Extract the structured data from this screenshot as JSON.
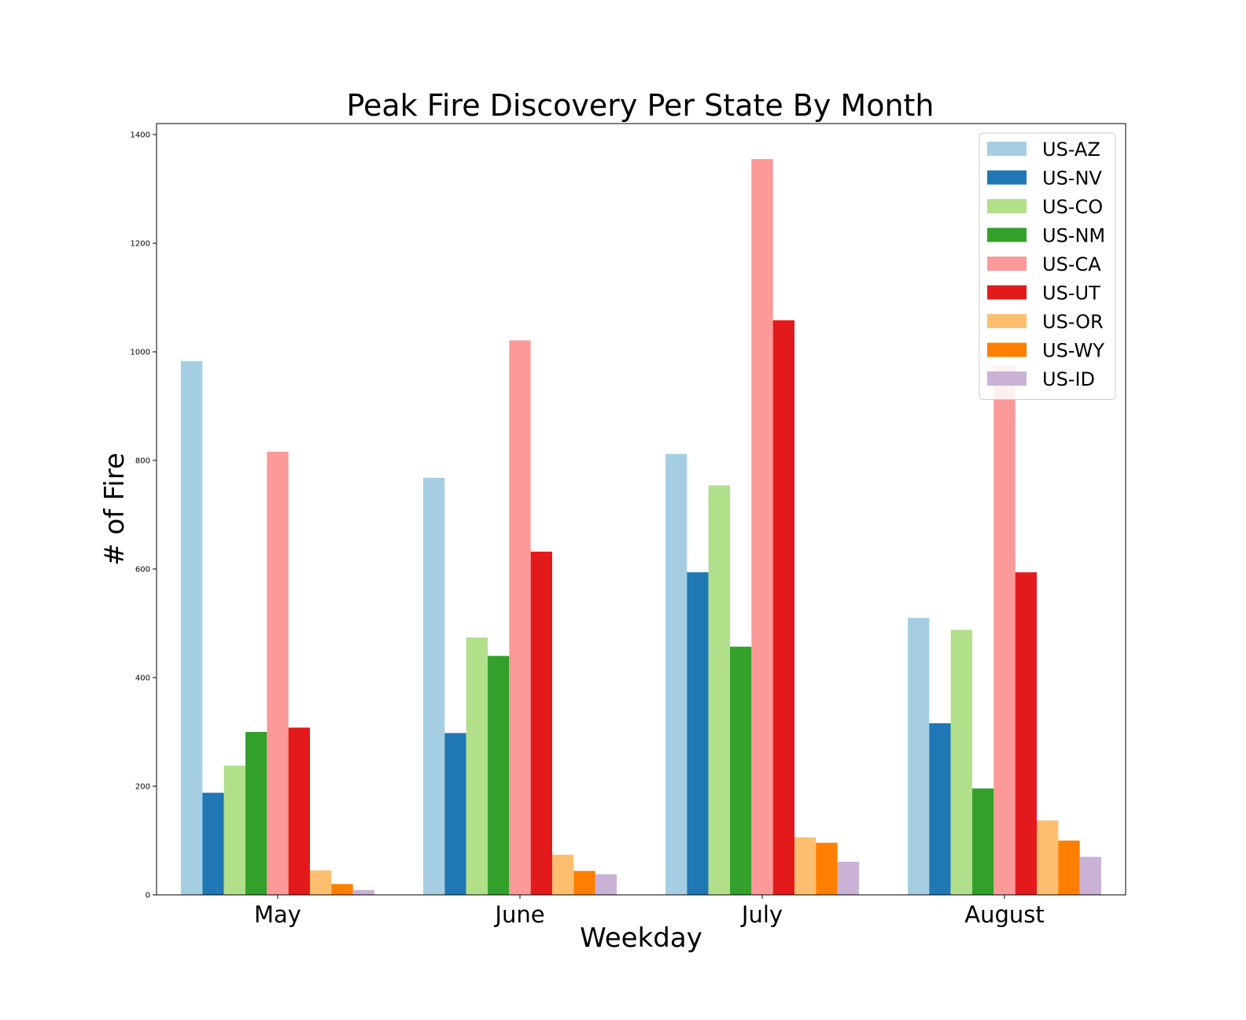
{
  "chart_data": {
    "type": "bar",
    "title": "Peak Fire Discovery Per State By Month",
    "xlabel": "Weekday",
    "ylabel": "# of Fire",
    "categories": [
      "May",
      "June",
      "July",
      "August"
    ],
    "ylim": [
      0,
      1420
    ],
    "yticks": [
      0,
      200,
      400,
      600,
      800,
      1000,
      1200,
      1400
    ],
    "legend_position": "top-right",
    "grid": false,
    "series": [
      {
        "name": "US-AZ",
        "color": "#a6cee3",
        "values": [
          983,
          768,
          812,
          510
        ]
      },
      {
        "name": "US-NV",
        "color": "#1f78b4",
        "values": [
          188,
          298,
          594,
          316
        ]
      },
      {
        "name": "US-CO",
        "color": "#b2df8a",
        "values": [
          238,
          474,
          754,
          488
        ]
      },
      {
        "name": "US-NM",
        "color": "#33a02c",
        "values": [
          300,
          440,
          457,
          196
        ]
      },
      {
        "name": "US-CA",
        "color": "#fb9a99",
        "values": [
          816,
          1021,
          1355,
          975
        ]
      },
      {
        "name": "US-UT",
        "color": "#e31a1c",
        "values": [
          308,
          632,
          1058,
          594
        ]
      },
      {
        "name": "US-OR",
        "color": "#fdbf6f",
        "values": [
          45,
          74,
          106,
          137
        ]
      },
      {
        "name": "US-WY",
        "color": "#ff7f00",
        "values": [
          20,
          44,
          96,
          100
        ]
      },
      {
        "name": "US-ID",
        "color": "#cab2d6",
        "values": [
          9,
          38,
          61,
          70
        ]
      }
    ]
  }
}
